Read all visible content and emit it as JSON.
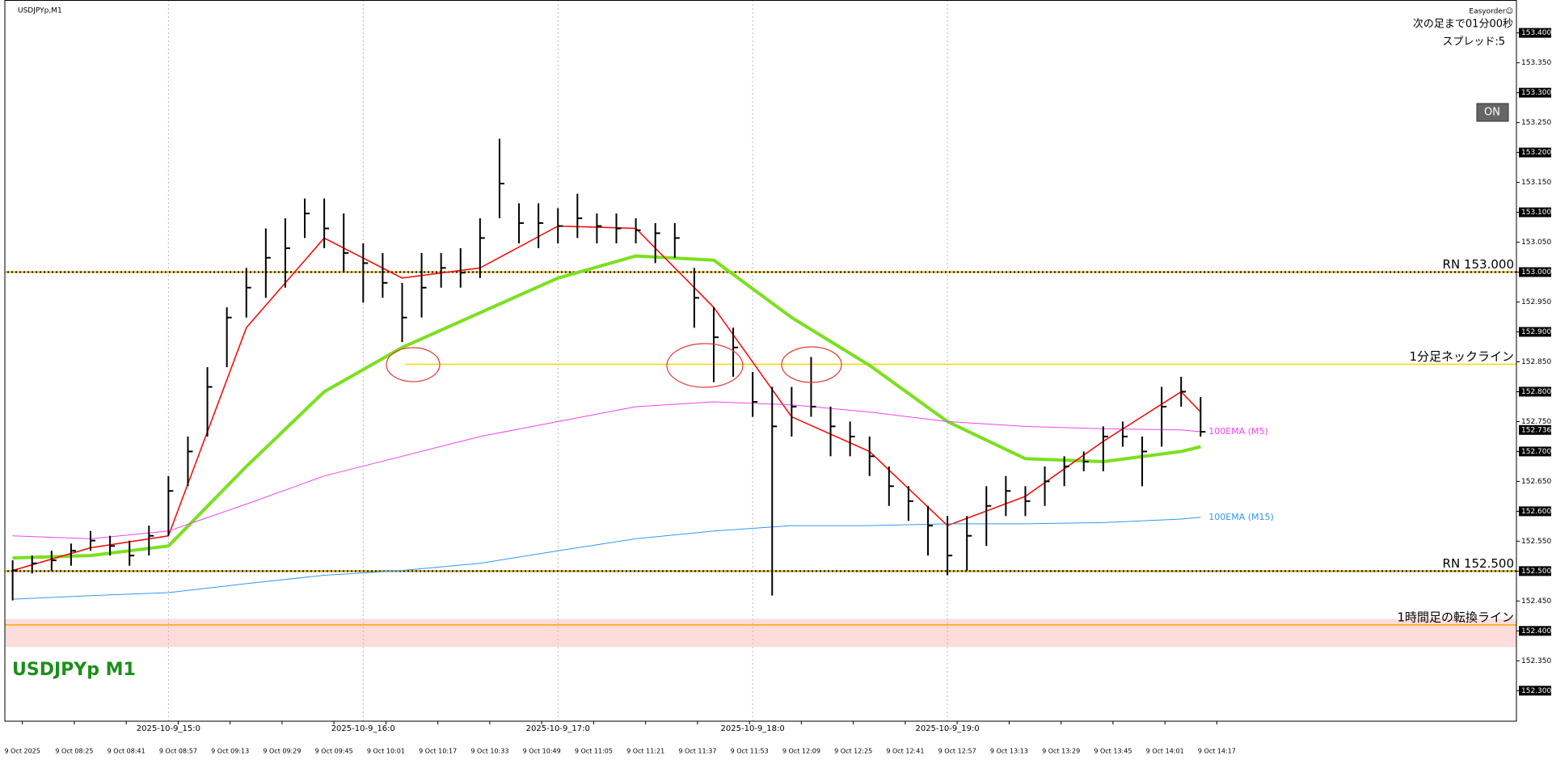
{
  "ui": {
    "app": "Easyorder☺",
    "countdown": "次の足まで01分00秒",
    "spread": "スプレッド:5",
    "button": "ON"
  },
  "chart_data": {
    "type": "ohlc",
    "title": "USDJPYp,M1",
    "watermark": "USDJPYp M1",
    "color": "#000000",
    "xlim": [
      483.6,
      949.3
    ],
    "ylim": [
      152.249,
      153.455
    ],
    "x": [
      486,
      492,
      498,
      504,
      510,
      516,
      522,
      528,
      534,
      540,
      546,
      552,
      558,
      564,
      570,
      576,
      582,
      588,
      594,
      600,
      606,
      612,
      618,
      624,
      630,
      636,
      642,
      648,
      654,
      660,
      666,
      672,
      678,
      684,
      690,
      696,
      702,
      708,
      714,
      720,
      726,
      732,
      738,
      744,
      750,
      756,
      762,
      768,
      774,
      780,
      786,
      792,
      798,
      804,
      810,
      816,
      822,
      828,
      834,
      840,
      846,
      852
    ],
    "high": [
      152.518,
      152.526,
      152.534,
      152.546,
      152.567,
      152.559,
      152.551,
      152.576,
      152.659,
      152.725,
      152.841,
      152.941,
      153.007,
      153.073,
      153.09,
      153.123,
      153.123,
      153.098,
      153.048,
      153.032,
      152.982,
      153.032,
      153.032,
      153.04,
      153.09,
      153.223,
      153.115,
      153.115,
      153.107,
      153.131,
      153.098,
      153.098,
      153.09,
      153.082,
      153.082,
      153.007,
      152.941,
      152.907,
      152.833,
      152.808,
      152.808,
      152.858,
      152.775,
      152.75,
      152.725,
      152.675,
      152.642,
      152.609,
      152.592,
      152.592,
      152.642,
      152.659,
      152.642,
      152.675,
      152.692,
      152.7,
      152.742,
      152.75,
      152.725,
      152.808,
      152.825,
      152.791
    ],
    "low": [
      152.451,
      152.496,
      152.501,
      152.509,
      152.534,
      152.526,
      152.509,
      152.526,
      152.559,
      152.642,
      152.725,
      152.841,
      152.924,
      152.957,
      152.974,
      153.057,
      153.04,
      152.999,
      152.949,
      152.957,
      152.883,
      152.924,
      152.974,
      152.974,
      152.99,
      153.09,
      153.048,
      153.04,
      153.048,
      153.057,
      153.048,
      153.048,
      153.048,
      153.015,
      153.024,
      152.907,
      152.816,
      152.825,
      152.758,
      152.459,
      152.725,
      152.758,
      152.692,
      152.692,
      152.659,
      152.609,
      152.584,
      152.526,
      152.493,
      152.501,
      152.542,
      152.592,
      152.592,
      152.609,
      152.642,
      152.667,
      152.667,
      152.708,
      152.642,
      152.708,
      152.775,
      152.725
    ],
    "close": [
      152.501,
      152.513,
      152.518,
      152.534,
      152.551,
      152.542,
      152.526,
      152.559,
      152.634,
      152.7,
      152.808,
      152.924,
      152.974,
      153.024,
      153.04,
      153.098,
      153.073,
      153.032,
      153.015,
      152.982,
      152.924,
      152.974,
      153.007,
      152.999,
      153.057,
      153.148,
      153.082,
      153.082,
      153.077,
      153.09,
      153.077,
      153.073,
      153.07,
      153.065,
      153.057,
      152.957,
      152.891,
      152.874,
      152.783,
      152.742,
      152.775,
      152.775,
      152.742,
      152.725,
      152.692,
      152.642,
      152.617,
      152.576,
      152.526,
      152.559,
      152.609,
      152.634,
      152.617,
      152.65,
      152.675,
      152.683,
      152.725,
      152.725,
      152.7,
      152.775,
      152.8,
      152.733
    ],
    "series": [
      {
        "color": "#7be01e",
        "width": 4,
        "x": [
          486,
          510,
          534,
          558,
          582,
          606,
          630,
          654,
          678,
          702,
          726,
          750,
          774,
          798,
          822,
          846,
          852
        ],
        "values": [
          152.522,
          152.526,
          152.542,
          152.675,
          152.8,
          152.874,
          152.932,
          152.99,
          153.027,
          153.02,
          152.924,
          152.844,
          152.75,
          152.688,
          152.683,
          152.7,
          152.708
        ]
      },
      {
        "color": "#ff0000",
        "width": 1.5,
        "x": [
          486,
          510,
          534,
          558,
          582,
          606,
          630,
          654,
          678,
          702,
          726,
          750,
          774,
          798,
          822,
          846,
          852
        ],
        "values": [
          152.501,
          152.539,
          152.559,
          152.907,
          153.057,
          152.99,
          153.007,
          153.077,
          153.073,
          152.941,
          152.758,
          152.7,
          152.576,
          152.625,
          152.717,
          152.8,
          152.766
        ]
      },
      {
        "name": "100EMA (M5)",
        "color": "#ee44ee",
        "width": 1,
        "x": [
          486,
          510,
          534,
          558,
          582,
          606,
          630,
          654,
          678,
          702,
          726,
          750,
          774,
          798,
          822,
          846,
          852
        ],
        "values": [
          152.559,
          152.554,
          152.567,
          152.612,
          152.659,
          152.692,
          152.725,
          152.75,
          152.775,
          152.783,
          152.778,
          152.766,
          152.75,
          152.742,
          152.738,
          152.736,
          152.733
        ]
      },
      {
        "name": "100EMA (M15)",
        "color": "#3399ee",
        "width": 1,
        "x": [
          486,
          510,
          534,
          558,
          582,
          606,
          630,
          654,
          678,
          702,
          726,
          750,
          774,
          798,
          822,
          846,
          852
        ],
        "values": [
          152.453,
          152.459,
          152.464,
          152.479,
          152.493,
          152.501,
          152.513,
          152.534,
          152.554,
          152.567,
          152.576,
          152.576,
          152.579,
          152.579,
          152.581,
          152.587,
          152.59
        ]
      }
    ],
    "levels": [
      {
        "value": 153.0,
        "label": "RN 153.000",
        "color": "#e8b800",
        "dotted": true
      },
      {
        "value": 152.846,
        "label": "1分足ネックライン",
        "color": "#ffd700",
        "x_start": 607
      },
      {
        "value": 152.5,
        "label": "RN 152.500",
        "color": "#e8b800",
        "dotted": true
      },
      {
        "value": 152.41,
        "label": "1時間足の転換ライン",
        "color": "#ffa500"
      }
    ],
    "zone": {
      "range": [
        152.373,
        152.42
      ],
      "color": "#ffdcdc"
    },
    "current_price": {
      "value": 152.736,
      "label": "152.736"
    },
    "separators": [
      {
        "value": 534,
        "label": "2025-10-9_15:0"
      },
      {
        "value": 594,
        "label": "2025-10-9_16:0"
      },
      {
        "value": 654,
        "label": "2025-10-9_17:0"
      },
      {
        "value": 714,
        "label": "2025-10-9_18:0"
      },
      {
        "value": 774,
        "label": "2025-10-9_19:0"
      }
    ],
    "xticks": [
      {
        "value": 489,
        "label": "9 Oct 2025"
      },
      {
        "value": 505,
        "label": "9 Oct 08:25"
      },
      {
        "value": 521,
        "label": "9 Oct 08:41"
      },
      {
        "value": 537,
        "label": "9 Oct 08:57"
      },
      {
        "value": 553,
        "label": "9 Oct 09:13"
      },
      {
        "value": 569,
        "label": "9 Oct 09:29"
      },
      {
        "value": 585,
        "label": "9 Oct 09:45"
      },
      {
        "value": 601,
        "label": "9 Oct 10:01"
      },
      {
        "value": 617,
        "label": "9 Oct 10:17"
      },
      {
        "value": 633,
        "label": "9 Oct 10:33"
      },
      {
        "value": 649,
        "label": "9 Oct 10:49"
      },
      {
        "value": 665,
        "label": "9 Oct 11:05"
      },
      {
        "value": 681,
        "label": "9 Oct 11:21"
      },
      {
        "value": 697,
        "label": "9 Oct 11:37"
      },
      {
        "value": 713,
        "label": "9 Oct 11:53"
      },
      {
        "value": 729,
        "label": "9 Oct 12:09"
      },
      {
        "value": 745,
        "label": "9 Oct 12:25"
      },
      {
        "value": 761,
        "label": "9 Oct 12:41"
      },
      {
        "value": 777,
        "label": "9 Oct 12:57"
      },
      {
        "value": 793,
        "label": "9 Oct 13:13"
      },
      {
        "value": 809,
        "label": "9 Oct 13:29"
      },
      {
        "value": 825,
        "label": "9 Oct 13:45"
      },
      {
        "value": 841,
        "label": "9 Oct 14:01"
      },
      {
        "value": 857,
        "label": "9 Oct 14:17"
      }
    ],
    "yticks": [
      {
        "value": 152.3,
        "label": "152.300",
        "boxed": true
      },
      {
        "value": 152.35,
        "label": "152.350"
      },
      {
        "value": 152.4,
        "label": "152.400",
        "boxed": true
      },
      {
        "value": 152.45,
        "label": "152.450"
      },
      {
        "value": 152.5,
        "label": "152.500",
        "boxed": true
      },
      {
        "value": 152.55,
        "label": "152.550"
      },
      {
        "value": 152.6,
        "label": "152.600",
        "boxed": true
      },
      {
        "value": 152.65,
        "label": "152.650"
      },
      {
        "value": 152.7,
        "label": "152.700",
        "boxed": true
      },
      {
        "value": 152.75,
        "label": "152.750"
      },
      {
        "value": 152.8,
        "label": "152.800",
        "boxed": true
      },
      {
        "value": 152.85,
        "label": "152.850"
      },
      {
        "value": 152.9,
        "label": "152.900",
        "boxed": true
      },
      {
        "value": 152.95,
        "label": "152.950"
      },
      {
        "value": 153.0,
        "label": "153.000",
        "boxed": true
      },
      {
        "value": 153.05,
        "label": "153.050"
      },
      {
        "value": 153.1,
        "label": "153.100",
        "boxed": true
      },
      {
        "value": 153.15,
        "label": "153.150"
      },
      {
        "value": 153.2,
        "label": "153.200",
        "boxed": true
      },
      {
        "value": 153.25,
        "label": "153.250"
      },
      {
        "value": 153.3,
        "label": "153.300",
        "boxed": true
      },
      {
        "value": 153.35,
        "label": "153.350"
      },
      {
        "value": 153.4,
        "label": "153.400",
        "boxed": true
      }
    ]
  }
}
